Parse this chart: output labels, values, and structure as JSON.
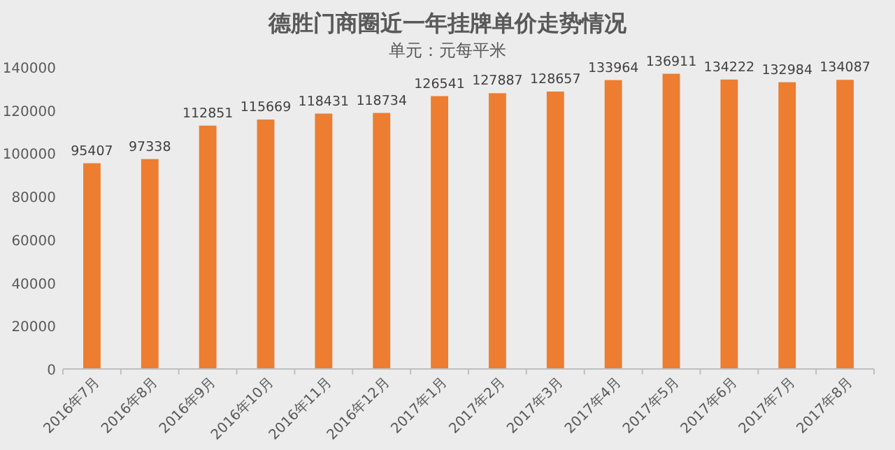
{
  "chart_data": {
    "type": "bar",
    "title": "德胜门商圈近一年挂牌单价走势情况",
    "subtitle": "单元：元每平米",
    "categories": [
      "2016年7月",
      "2016年8月",
      "2016年9月",
      "2016年10月",
      "2016年11月",
      "2016年12月",
      "2017年1月",
      "2017年2月",
      "2017年3月",
      "2017年4月",
      "2017年5月",
      "2017年6月",
      "2017年7月",
      "2017年8月"
    ],
    "values": [
      95407,
      97338,
      112851,
      115669,
      118431,
      118734,
      126541,
      127887,
      128657,
      133964,
      136911,
      134222,
      132984,
      134087
    ],
    "color": "#ed7d31",
    "ylim": [
      0,
      140000
    ],
    "yticks": [
      0,
      20000,
      40000,
      60000,
      80000,
      100000,
      120000,
      140000
    ],
    "data_labels": true,
    "grid": false
  }
}
